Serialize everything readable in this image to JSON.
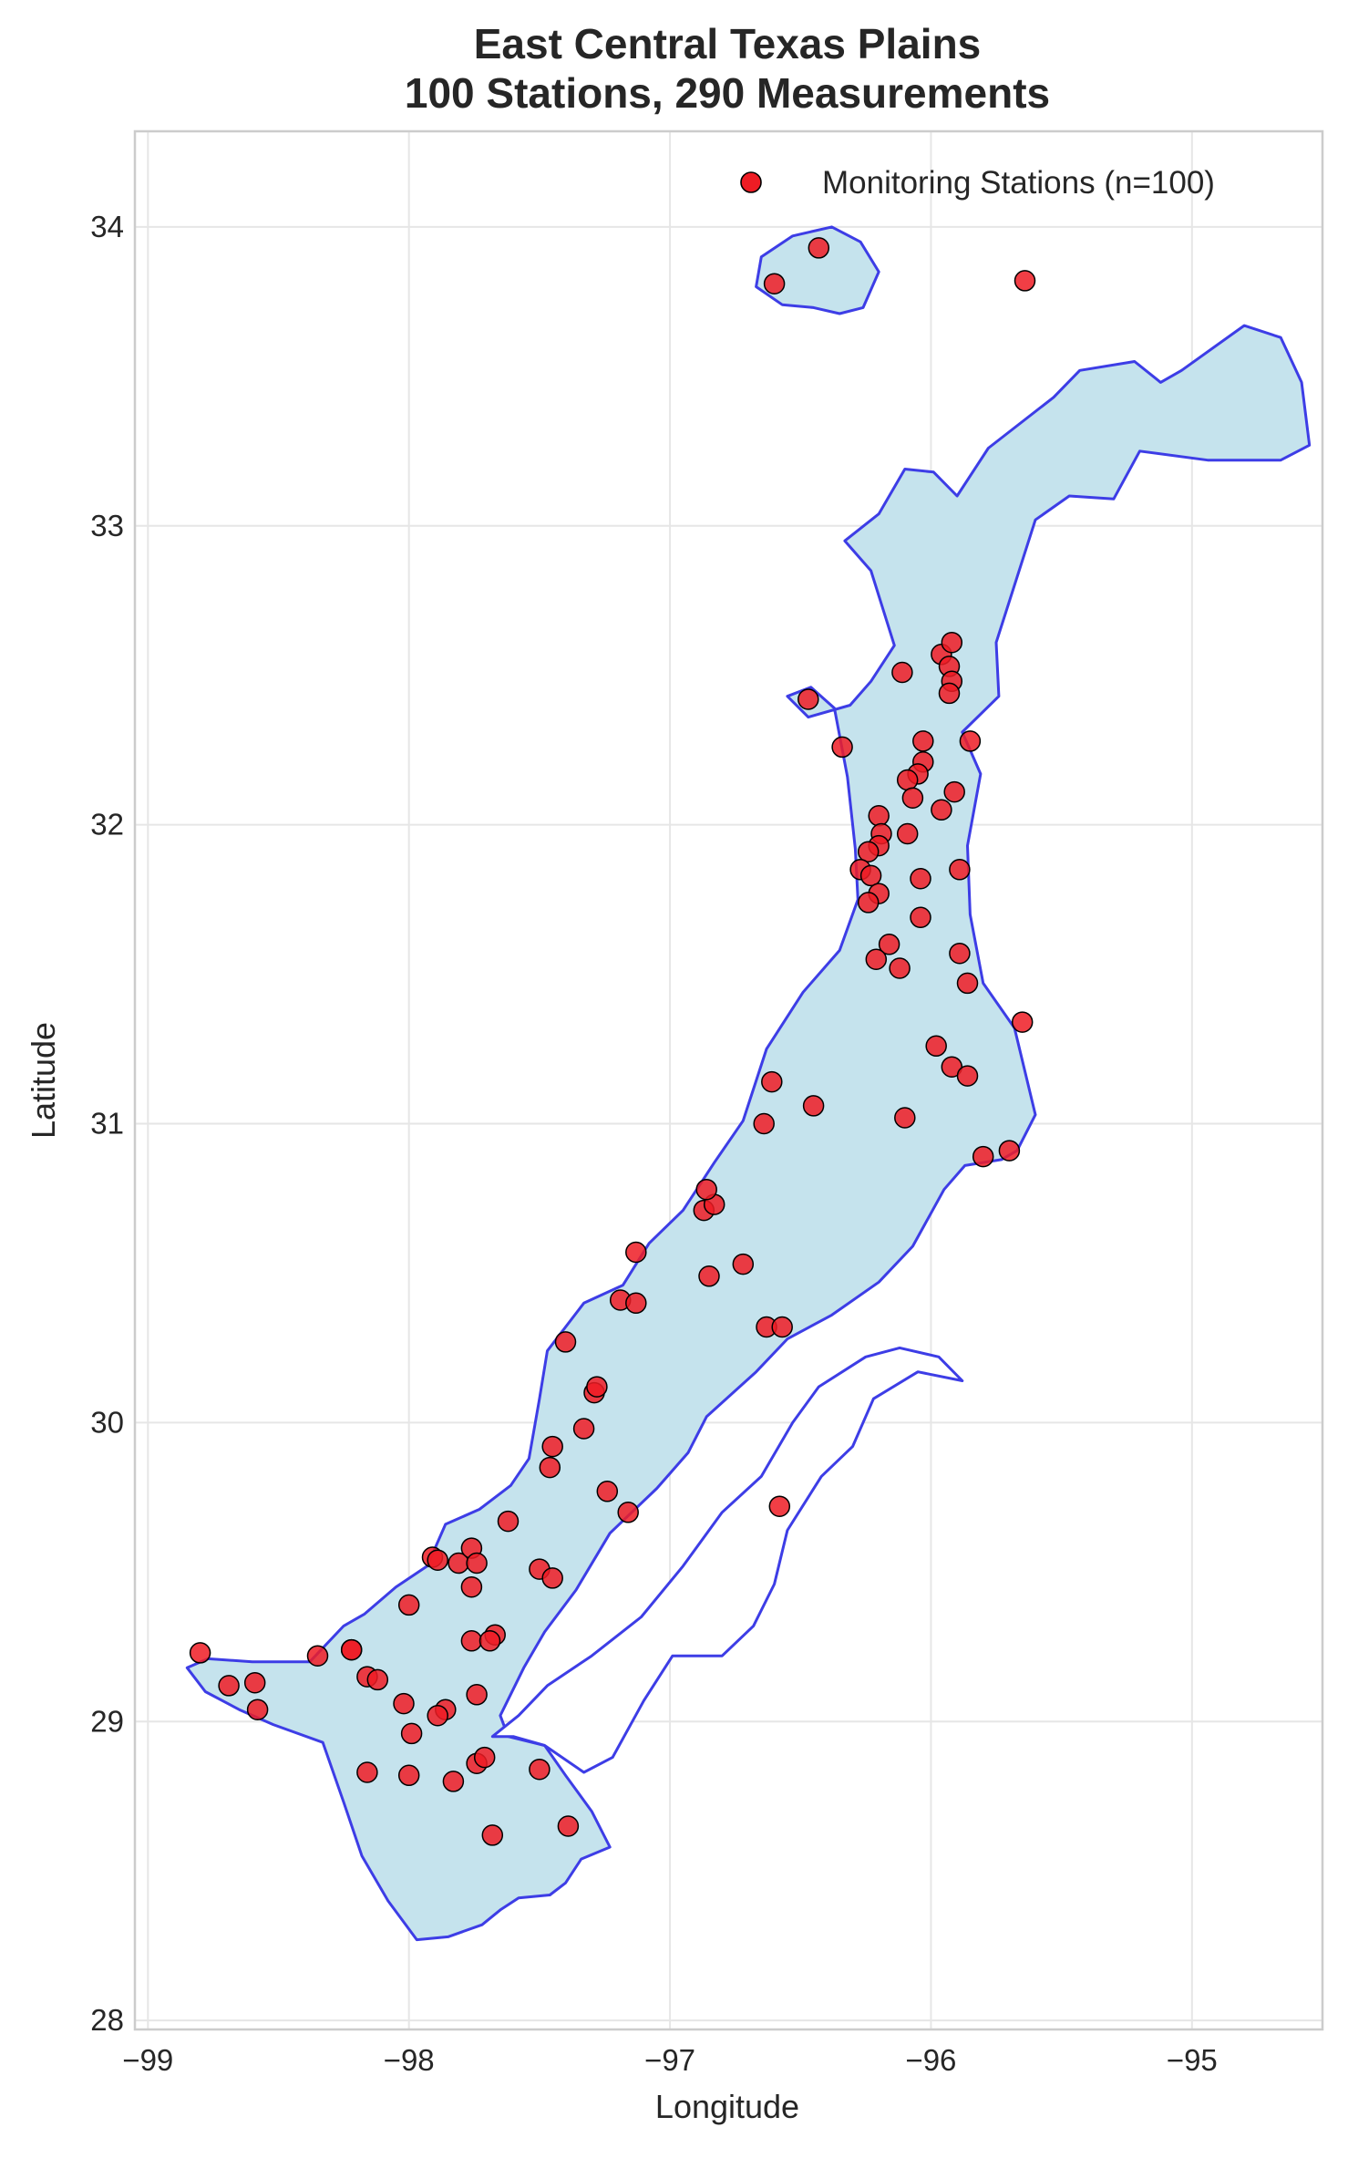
{
  "chart_data": {
    "type": "scatter",
    "title": "East Central Texas Plains\n100 Stations, 290 Measurements",
    "title_lines": [
      "East Central Texas Plains",
      "100 Stations, 290 Measurements"
    ],
    "xlabel": "Longitude",
    "ylabel": "Latitude",
    "xlim": [
      -99.05,
      -94.5
    ],
    "ylim": [
      27.97,
      34.32
    ],
    "x_ticks": [
      -99,
      -98,
      -97,
      -96,
      -95
    ],
    "x_tick_labels": [
      "−99",
      "−98",
      "−97",
      "−96",
      "−95"
    ],
    "y_ticks": [
      28,
      29,
      30,
      31,
      32,
      33,
      34
    ],
    "y_tick_labels": [
      "28",
      "29",
      "30",
      "31",
      "32",
      "33",
      "34"
    ],
    "grid": true,
    "legend_position": "top-right",
    "colors": {
      "station_fill": "#ee1c24",
      "station_edge": "#000000",
      "region_fill": "#c5e3ed",
      "region_edge": "#3d3de6"
    },
    "series": [
      {
        "name": "Monitoring Stations (n=100)",
        "points": [
          [
            -98.8,
            29.23
          ],
          [
            -98.69,
            29.12
          ],
          [
            -98.59,
            29.13
          ],
          [
            -98.58,
            29.04
          ],
          [
            -98.35,
            29.22
          ],
          [
            -98.22,
            29.24
          ],
          [
            -98.22,
            29.24
          ],
          [
            -98.16,
            29.15
          ],
          [
            -98.12,
            29.14
          ],
          [
            -98.02,
            29.06
          ],
          [
            -98.16,
            28.83
          ],
          [
            -98.0,
            28.82
          ],
          [
            -97.99,
            28.96
          ],
          [
            -98.0,
            29.39
          ],
          [
            -97.91,
            29.55
          ],
          [
            -97.89,
            29.54
          ],
          [
            -97.81,
            29.53
          ],
          [
            -97.76,
            29.58
          ],
          [
            -97.74,
            29.53
          ],
          [
            -97.76,
            29.45
          ],
          [
            -97.76,
            29.27
          ],
          [
            -97.67,
            29.29
          ],
          [
            -97.69,
            29.27
          ],
          [
            -97.74,
            29.09
          ],
          [
            -97.86,
            29.04
          ],
          [
            -97.89,
            29.02
          ],
          [
            -97.74,
            28.86
          ],
          [
            -97.71,
            28.88
          ],
          [
            -97.83,
            28.8
          ],
          [
            -97.68,
            28.62
          ],
          [
            -97.5,
            28.84
          ],
          [
            -97.39,
            28.65
          ],
          [
            -97.62,
            29.67
          ],
          [
            -97.5,
            29.51
          ],
          [
            -97.45,
            29.48
          ],
          [
            -97.46,
            29.85
          ],
          [
            -97.45,
            29.92
          ],
          [
            -97.24,
            29.77
          ],
          [
            -97.16,
            29.7
          ],
          [
            -97.33,
            29.98
          ],
          [
            -97.29,
            30.1
          ],
          [
            -97.28,
            30.12
          ],
          [
            -97.4,
            30.27
          ],
          [
            -97.19,
            30.41
          ],
          [
            -97.13,
            30.4
          ],
          [
            -97.13,
            30.57
          ],
          [
            -96.87,
            30.71
          ],
          [
            -96.83,
            30.73
          ],
          [
            -96.86,
            30.78
          ],
          [
            -96.85,
            30.49
          ],
          [
            -96.72,
            30.53
          ],
          [
            -96.63,
            30.32
          ],
          [
            -96.57,
            30.32
          ],
          [
            -96.58,
            29.72
          ],
          [
            -96.64,
            31.0
          ],
          [
            -96.61,
            31.14
          ],
          [
            -96.45,
            31.06
          ],
          [
            -96.1,
            31.02
          ],
          [
            -95.98,
            31.26
          ],
          [
            -95.92,
            31.19
          ],
          [
            -95.86,
            31.16
          ],
          [
            -95.8,
            30.89
          ],
          [
            -95.7,
            30.91
          ],
          [
            -95.65,
            31.34
          ],
          [
            -96.6,
            33.81
          ],
          [
            -96.43,
            33.93
          ],
          [
            -95.64,
            33.82
          ],
          [
            -96.11,
            32.51
          ],
          [
            -96.47,
            32.42
          ],
          [
            -96.34,
            32.26
          ],
          [
            -95.96,
            32.57
          ],
          [
            -95.92,
            32.61
          ],
          [
            -95.93,
            32.53
          ],
          [
            -95.92,
            32.48
          ],
          [
            -95.93,
            32.44
          ],
          [
            -96.03,
            32.28
          ],
          [
            -95.85,
            32.28
          ],
          [
            -96.03,
            32.21
          ],
          [
            -96.05,
            32.17
          ],
          [
            -96.09,
            32.15
          ],
          [
            -95.91,
            32.11
          ],
          [
            -96.07,
            32.09
          ],
          [
            -95.96,
            32.05
          ],
          [
            -96.2,
            32.03
          ],
          [
            -96.19,
            31.97
          ],
          [
            -96.2,
            31.93
          ],
          [
            -96.24,
            31.91
          ],
          [
            -96.09,
            31.97
          ],
          [
            -96.27,
            31.85
          ],
          [
            -96.23,
            31.83
          ],
          [
            -96.2,
            31.77
          ],
          [
            -96.24,
            31.74
          ],
          [
            -96.04,
            31.82
          ],
          [
            -95.89,
            31.85
          ],
          [
            -96.04,
            31.69
          ],
          [
            -96.16,
            31.6
          ],
          [
            -96.21,
            31.55
          ],
          [
            -96.12,
            31.52
          ],
          [
            -95.89,
            31.57
          ],
          [
            -95.86,
            31.47
          ]
        ]
      }
    ],
    "region_outline": [
      [
        -98.17,
        29.36
      ],
      [
        -98.05,
        29.45
      ],
      [
        -97.93,
        29.52
      ],
      [
        -97.86,
        29.66
      ],
      [
        -97.73,
        29.71
      ],
      [
        -97.61,
        29.79
      ],
      [
        -97.54,
        29.88
      ],
      [
        -97.5,
        30.08
      ],
      [
        -97.47,
        30.24
      ],
      [
        -97.33,
        30.4
      ],
      [
        -97.18,
        30.46
      ],
      [
        -97.08,
        30.6
      ],
      [
        -96.95,
        30.71
      ],
      [
        -96.83,
        30.87
      ],
      [
        -96.72,
        31.01
      ],
      [
        -96.63,
        31.25
      ],
      [
        -96.49,
        31.44
      ],
      [
        -96.35,
        31.58
      ],
      [
        -96.28,
        31.75
      ],
      [
        -96.29,
        31.92
      ],
      [
        -96.32,
        32.16
      ],
      [
        -96.37,
        32.39
      ],
      [
        -96.46,
        32.46
      ],
      [
        -96.55,
        32.43
      ],
      [
        -96.47,
        32.36
      ],
      [
        -96.31,
        32.4
      ],
      [
        -96.23,
        32.48
      ],
      [
        -96.14,
        32.6
      ],
      [
        -96.23,
        32.85
      ],
      [
        -96.33,
        32.95
      ],
      [
        -96.2,
        33.04
      ],
      [
        -96.1,
        33.19
      ],
      [
        -95.99,
        33.18
      ],
      [
        -95.9,
        33.1
      ],
      [
        -95.78,
        33.26
      ],
      [
        -95.53,
        33.43
      ],
      [
        -95.43,
        33.52
      ],
      [
        -95.22,
        33.55
      ],
      [
        -95.12,
        33.48
      ],
      [
        -95.04,
        33.52
      ],
      [
        -94.8,
        33.67
      ],
      [
        -94.66,
        33.63
      ],
      [
        -94.58,
        33.48
      ],
      [
        -94.55,
        33.27
      ],
      [
        -94.66,
        33.22
      ],
      [
        -94.94,
        33.22
      ],
      [
        -95.2,
        33.25
      ],
      [
        -95.3,
        33.09
      ],
      [
        -95.47,
        33.1
      ],
      [
        -95.6,
        33.02
      ],
      [
        -95.75,
        32.61
      ],
      [
        -95.74,
        32.43
      ],
      [
        -95.88,
        32.31
      ],
      [
        -95.81,
        32.17
      ],
      [
        -95.86,
        31.93
      ],
      [
        -95.85,
        31.7
      ],
      [
        -95.8,
        31.47
      ],
      [
        -95.68,
        31.32
      ],
      [
        -95.6,
        31.03
      ],
      [
        -95.67,
        30.91
      ],
      [
        -95.73,
        30.88
      ],
      [
        -95.87,
        30.86
      ],
      [
        -95.95,
        30.78
      ],
      [
        -96.07,
        30.59
      ],
      [
        -96.2,
        30.47
      ],
      [
        -96.38,
        30.36
      ],
      [
        -96.55,
        30.28
      ],
      [
        -96.67,
        30.17
      ],
      [
        -96.86,
        30.02
      ],
      [
        -96.93,
        29.9
      ],
      [
        -97.05,
        29.78
      ],
      [
        -97.23,
        29.63
      ],
      [
        -97.36,
        29.44
      ],
      [
        -97.48,
        29.3
      ],
      [
        -97.56,
        29.18
      ],
      [
        -97.65,
        29.02
      ],
      [
        -97.62,
        28.95
      ],
      [
        -97.48,
        28.92
      ],
      [
        -97.4,
        28.82
      ],
      [
        -97.3,
        28.7
      ],
      [
        -97.23,
        28.58
      ],
      [
        -97.34,
        28.54
      ],
      [
        -97.4,
        28.46
      ],
      [
        -97.46,
        28.42
      ],
      [
        -97.58,
        28.41
      ],
      [
        -97.65,
        28.37
      ],
      [
        -97.72,
        28.32
      ],
      [
        -97.85,
        28.28
      ],
      [
        -97.97,
        28.27
      ],
      [
        -98.08,
        28.4
      ],
      [
        -98.18,
        28.55
      ],
      [
        -98.25,
        28.73
      ],
      [
        -98.33,
        28.93
      ],
      [
        -98.52,
        28.99
      ],
      [
        -98.65,
        29.04
      ],
      [
        -98.78,
        29.1
      ],
      [
        -98.85,
        29.18
      ],
      [
        -98.77,
        29.21
      ],
      [
        -98.6,
        29.2
      ],
      [
        -98.38,
        29.2
      ],
      [
        -98.25,
        29.32
      ]
    ],
    "north_inlet_outline": [
      [
        -96.67,
        33.8
      ],
      [
        -96.57,
        33.74
      ],
      [
        -96.45,
        33.73
      ],
      [
        -96.35,
        33.71
      ],
      [
        -96.26,
        33.73
      ],
      [
        -96.2,
        33.85
      ],
      [
        -96.27,
        33.95
      ],
      [
        -96.38,
        34.0
      ],
      [
        -96.53,
        33.97
      ],
      [
        -96.65,
        33.9
      ]
    ],
    "south_corridor_outline": [
      [
        -97.68,
        28.95
      ],
      [
        -97.58,
        29.02
      ],
      [
        -97.47,
        29.12
      ],
      [
        -97.3,
        29.22
      ],
      [
        -97.11,
        29.35
      ],
      [
        -96.95,
        29.52
      ],
      [
        -96.8,
        29.7
      ],
      [
        -96.65,
        29.82
      ],
      [
        -96.53,
        30.0
      ],
      [
        -96.43,
        30.12
      ],
      [
        -96.25,
        30.22
      ],
      [
        -96.12,
        30.25
      ],
      [
        -95.97,
        30.22
      ],
      [
        -95.88,
        30.14
      ],
      [
        -96.05,
        30.17
      ],
      [
        -96.22,
        30.08
      ],
      [
        -96.3,
        29.92
      ],
      [
        -96.42,
        29.82
      ],
      [
        -96.55,
        29.64
      ],
      [
        -96.6,
        29.46
      ],
      [
        -96.68,
        29.32
      ],
      [
        -96.8,
        29.22
      ],
      [
        -96.99,
        29.22
      ],
      [
        -97.1,
        29.07
      ],
      [
        -97.22,
        28.88
      ],
      [
        -97.33,
        28.83
      ],
      [
        -97.48,
        28.92
      ],
      [
        -97.6,
        28.95
      ]
    ]
  }
}
